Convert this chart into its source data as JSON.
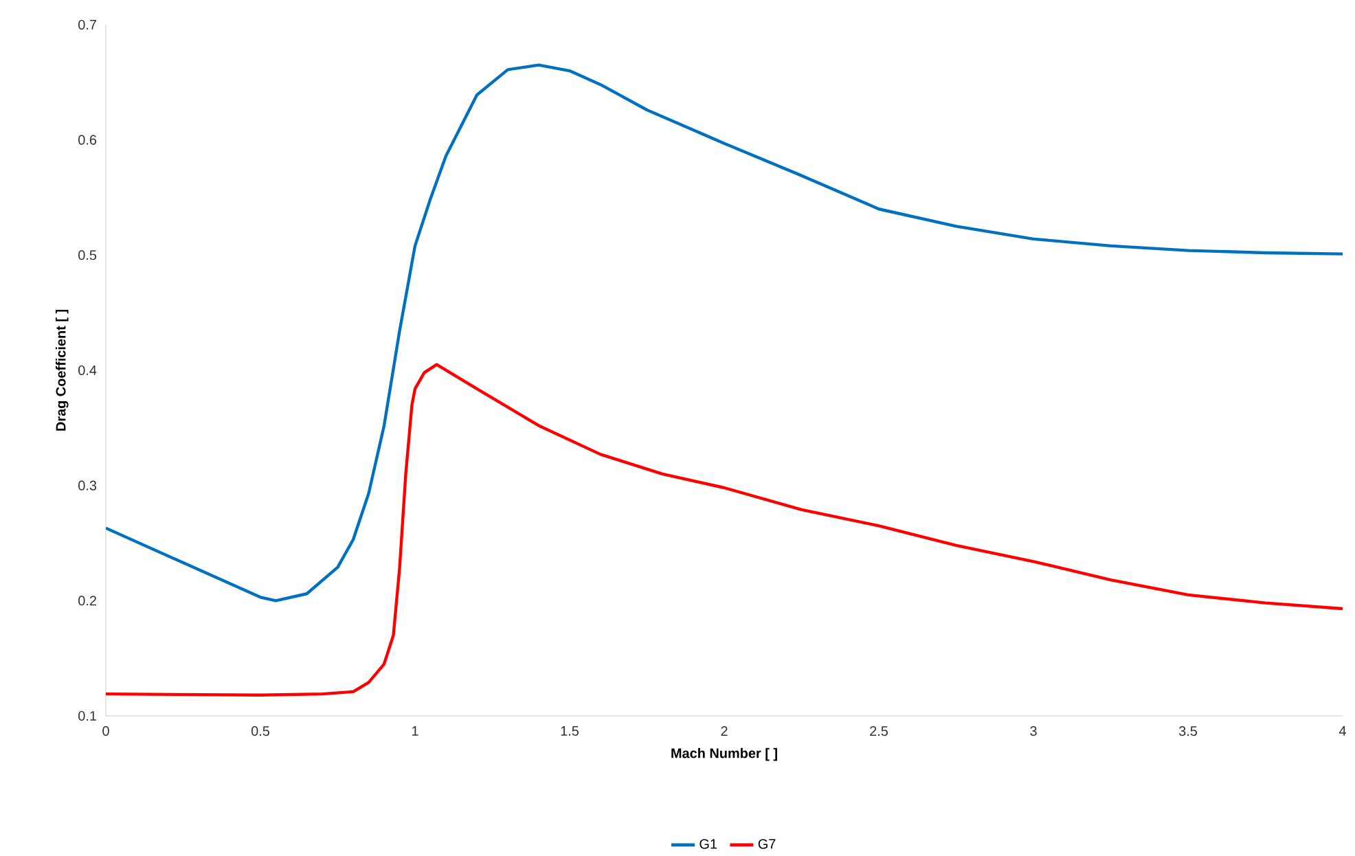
{
  "chart_data": {
    "type": "line",
    "xlabel": "Mach Number [ ]",
    "ylabel": "Drag Coefficient [ ]",
    "xlim": [
      0,
      4
    ],
    "xticks": [
      0,
      0.5,
      1,
      1.5,
      2,
      2.5,
      3,
      3.5,
      4
    ],
    "ylim": [
      0.1,
      0.7
    ],
    "yticks": [
      0.1,
      0.2,
      0.3,
      0.4,
      0.5,
      0.6,
      0.7
    ],
    "grid": false,
    "legend": "bottom",
    "marker": "none",
    "line_style": "solid",
    "series": [
      {
        "name": "G1",
        "color": "#0070c0",
        "x": [
          0,
          0.25,
          0.5,
          0.55,
          0.65,
          0.75,
          0.8,
          0.85,
          0.9,
          0.95,
          1.0,
          1.05,
          1.1,
          1.2,
          1.3,
          1.4,
          1.5,
          1.6,
          1.75,
          2.0,
          2.25,
          2.5,
          2.75,
          3.0,
          3.25,
          3.5,
          3.75,
          4.0
        ],
        "values": [
          0.263,
          0.233,
          0.203,
          0.2,
          0.206,
          0.229,
          0.253,
          0.293,
          0.352,
          0.434,
          0.508,
          0.549,
          0.586,
          0.639,
          0.661,
          0.665,
          0.66,
          0.648,
          0.626,
          0.597,
          0.569,
          0.54,
          0.525,
          0.514,
          0.508,
          0.504,
          0.502,
          0.501
        ]
      },
      {
        "name": "G7",
        "color": "#ff0000",
        "x": [
          0,
          0.5,
          0.7,
          0.8,
          0.85,
          0.9,
          0.93,
          0.95,
          0.97,
          0.99,
          1.0,
          1.03,
          1.07,
          1.2,
          1.4,
          1.6,
          1.8,
          2.0,
          2.25,
          2.5,
          2.75,
          3.0,
          3.25,
          3.5,
          3.75,
          4.0
        ],
        "values": [
          0.119,
          0.118,
          0.119,
          0.121,
          0.129,
          0.145,
          0.17,
          0.228,
          0.31,
          0.37,
          0.384,
          0.398,
          0.405,
          0.384,
          0.352,
          0.327,
          0.31,
          0.298,
          0.279,
          0.265,
          0.248,
          0.234,
          0.218,
          0.205,
          0.198,
          0.193
        ]
      }
    ]
  }
}
